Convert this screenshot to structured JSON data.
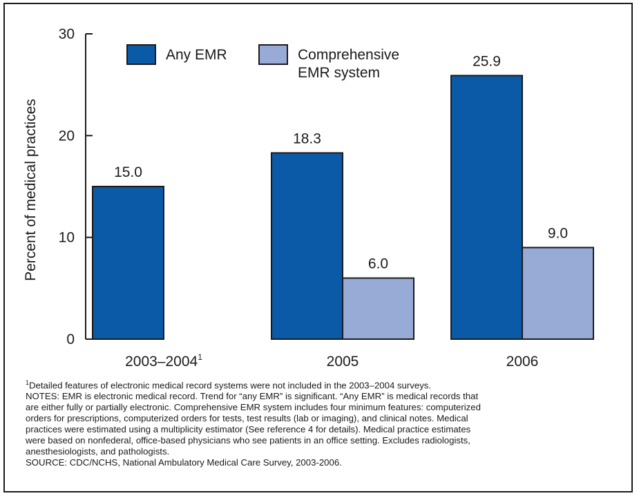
{
  "chart_data": {
    "type": "bar",
    "categories": [
      "2003–2004",
      "2005",
      "2006"
    ],
    "category_footnote_marks": [
      "1",
      "",
      ""
    ],
    "series": [
      {
        "name": "Any EMR",
        "values": [
          15.0,
          18.3,
          25.9
        ],
        "color": "#0b5aa8"
      },
      {
        "name": "Comprehensive EMR system",
        "values": [
          null,
          6.0,
          9.0
        ],
        "color": "#98aad6"
      }
    ],
    "data_labels": [
      [
        "15.0",
        "18.3",
        "25.9"
      ],
      [
        "",
        "6.0",
        "9.0"
      ]
    ],
    "ylabel": "Percent of medical practices",
    "xlabel": "",
    "ylim": [
      0,
      30
    ],
    "yticks": [
      0,
      10,
      20,
      30
    ],
    "legend_placement": "top",
    "grid": false
  },
  "legend": {
    "any_emr": "Any EMR",
    "comprehensive_line1": "Comprehensive",
    "comprehensive_line2": "EMR system"
  },
  "notes": {
    "footnote_mark": "1",
    "footnote": "Detailed features of electronic medical record systems were not included in the 2003–2004 surveys.",
    "notes_lines": [
      "NOTES: EMR is electronic medical record.  Trend for “any EMR” is significant. “Any EMR” is medical records that",
      "are either fully or partially electronic.  Comprehensive EMR system includes four minimum features: computerized",
      "orders for prescriptions, computerized orders for tests, test results (lab or imaging), and clinical notes. Medical",
      "practices were estimated using a multiplicity estimator (See reference 4 for details). Medical practice estimates",
      "were based on nonfederal, office-based physicians who see patients in an office setting.  Excludes radiologists,",
      "anesthesiologists, and pathologists."
    ],
    "source": "SOURCE: CDC/NCHS, National Ambulatory Medical Care Survey, 2003-2006."
  }
}
